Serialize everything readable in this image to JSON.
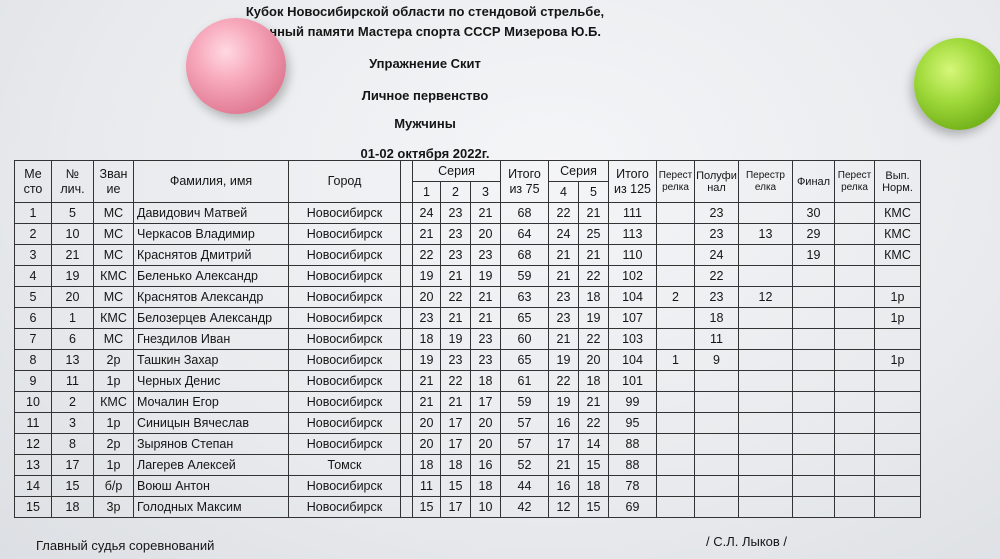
{
  "header": {
    "line1": "Кубок Новосибирской области по стендовой стрельбе,",
    "line2": "…енный памяти Мастера спорта СССР Мизерова Ю.Б.",
    "line3": "Упражнение Скит",
    "line4": "Личное первенство",
    "line5": "Мужчины",
    "line6": "01-02 октября  2022г."
  },
  "columns": {
    "place": [
      "Ме",
      "сто"
    ],
    "num": [
      "№",
      "лич."
    ],
    "rank": [
      "Зван",
      "ие"
    ],
    "name": "Фамилия, имя",
    "city": "Город",
    "series": "Серия",
    "s1": "1",
    "s2": "2",
    "s3": "3",
    "total75": [
      "Итого",
      "из 75"
    ],
    "series2": "Серия",
    "s4": "4",
    "s5": "5",
    "total125": [
      "Итого",
      "из 125"
    ],
    "shootoff1": [
      "Перест",
      "релка"
    ],
    "semifinal": [
      "Полуфи",
      "нал"
    ],
    "shootoff2": [
      "Перестр",
      "елка"
    ],
    "final": "Финал",
    "shootoff3": [
      "Перест",
      "релка"
    ],
    "norm": [
      "Вып.",
      "Норм."
    ]
  },
  "rows": [
    {
      "place": "1",
      "num": "5",
      "rank": "МС",
      "name": "Давидович Матвей",
      "city": "Новосибирск",
      "s1": "24",
      "s2": "23",
      "s3": "21",
      "t75": "68",
      "s4": "22",
      "s5": "21",
      "t125": "111",
      "so1": "",
      "semi": "23",
      "so2": "",
      "final": "30",
      "so3": "",
      "norm": "КМС"
    },
    {
      "place": "2",
      "num": "10",
      "rank": "МС",
      "name": "Черкасов Владимир",
      "city": "Новосибирск",
      "s1": "21",
      "s2": "23",
      "s3": "20",
      "t75": "64",
      "s4": "24",
      "s5": "25",
      "t125": "113",
      "so1": "",
      "semi": "23",
      "so2": "13",
      "final": "29",
      "so3": "",
      "norm": "КМС"
    },
    {
      "place": "3",
      "num": "21",
      "rank": "МС",
      "name": "Краснятов Дмитрий",
      "city": "Новосибирск",
      "s1": "22",
      "s2": "23",
      "s3": "23",
      "t75": "68",
      "s4": "21",
      "s5": "21",
      "t125": "110",
      "so1": "",
      "semi": "24",
      "so2": "",
      "final": "19",
      "so3": "",
      "norm": "КМС"
    },
    {
      "place": "4",
      "num": "19",
      "rank": "КМС",
      "name": "Беленько Александр",
      "city": "Новосибирск",
      "s1": "19",
      "s2": "21",
      "s3": "19",
      "t75": "59",
      "s4": "21",
      "s5": "22",
      "t125": "102",
      "so1": "",
      "semi": "22",
      "so2": "",
      "final": "",
      "so3": "",
      "norm": ""
    },
    {
      "place": "5",
      "num": "20",
      "rank": "МС",
      "name": "Краснятов Александр",
      "city": "Новосибирск",
      "s1": "20",
      "s2": "22",
      "s3": "21",
      "t75": "63",
      "s4": "23",
      "s5": "18",
      "t125": "104",
      "so1": "2",
      "semi": "23",
      "so2": "12",
      "final": "",
      "so3": "",
      "norm": "1р"
    },
    {
      "place": "6",
      "num": "1",
      "rank": "КМС",
      "name": "Белозерцев Александр",
      "city": "Новосибирск",
      "s1": "23",
      "s2": "21",
      "s3": "21",
      "t75": "65",
      "s4": "23",
      "s5": "19",
      "t125": "107",
      "so1": "",
      "semi": "18",
      "so2": "",
      "final": "",
      "so3": "",
      "norm": "1р"
    },
    {
      "place": "7",
      "num": "6",
      "rank": "МС",
      "name": "Гнездилов Иван",
      "city": "Новосибирск",
      "s1": "18",
      "s2": "19",
      "s3": "23",
      "t75": "60",
      "s4": "21",
      "s5": "22",
      "t125": "103",
      "so1": "",
      "semi": "11",
      "so2": "",
      "final": "",
      "so3": "",
      "norm": ""
    },
    {
      "place": "8",
      "num": "13",
      "rank": "2р",
      "name": "Ташкин Захар",
      "city": "Новосибирск",
      "s1": "19",
      "s2": "23",
      "s3": "23",
      "t75": "65",
      "s4": "19",
      "s5": "20",
      "t125": "104",
      "so1": "1",
      "semi": "9",
      "so2": "",
      "final": "",
      "so3": "",
      "norm": "1р"
    },
    {
      "place": "9",
      "num": "11",
      "rank": "1р",
      "name": "Черных Денис",
      "city": "Новосибирск",
      "s1": "21",
      "s2": "22",
      "s3": "18",
      "t75": "61",
      "s4": "22",
      "s5": "18",
      "t125": "101",
      "so1": "",
      "semi": "",
      "so2": "",
      "final": "",
      "so3": "",
      "norm": ""
    },
    {
      "place": "10",
      "num": "2",
      "rank": "КМС",
      "name": "Мочалин Егор",
      "city": "Новосибирск",
      "s1": "21",
      "s2": "21",
      "s3": "17",
      "t75": "59",
      "s4": "19",
      "s5": "21",
      "t125": "99",
      "so1": "",
      "semi": "",
      "so2": "",
      "final": "",
      "so3": "",
      "norm": ""
    },
    {
      "place": "11",
      "num": "3",
      "rank": "1р",
      "name": "Синицын Вячеслав",
      "city": "Новосибирск",
      "s1": "20",
      "s2": "17",
      "s3": "20",
      "t75": "57",
      "s4": "16",
      "s5": "22",
      "t125": "95",
      "so1": "",
      "semi": "",
      "so2": "",
      "final": "",
      "so3": "",
      "norm": ""
    },
    {
      "place": "12",
      "num": "8",
      "rank": "2р",
      "name": "Зырянов Степан",
      "city": "Новосибирск",
      "s1": "20",
      "s2": "17",
      "s3": "20",
      "t75": "57",
      "s4": "17",
      "s5": "14",
      "t125": "88",
      "so1": "",
      "semi": "",
      "so2": "",
      "final": "",
      "so3": "",
      "norm": ""
    },
    {
      "place": "13",
      "num": "17",
      "rank": "1р",
      "name": "Лагерев Алексей",
      "city": "Томск",
      "s1": "18",
      "s2": "18",
      "s3": "16",
      "t75": "52",
      "s4": "21",
      "s5": "15",
      "t125": "88",
      "so1": "",
      "semi": "",
      "so2": "",
      "final": "",
      "so3": "",
      "norm": ""
    },
    {
      "place": "14",
      "num": "15",
      "rank": "б/р",
      "name": "Воюш Антон",
      "city": "Новосибирск",
      "s1": "11",
      "s2": "15",
      "s3": "18",
      "t75": "44",
      "s4": "16",
      "s5": "18",
      "t125": "78",
      "so1": "",
      "semi": "",
      "so2": "",
      "final": "",
      "so3": "",
      "norm": ""
    },
    {
      "place": "15",
      "num": "18",
      "rank": "3р",
      "name": "Голодных Максим",
      "city": "Новосибирск",
      "s1": "15",
      "s2": "17",
      "s3": "10",
      "t75": "42",
      "s4": "12",
      "s5": "15",
      "t125": "69",
      "so1": "",
      "semi": "",
      "so2": "",
      "final": "",
      "so3": "",
      "norm": ""
    }
  ],
  "footer": {
    "judge_label": "Главный судья соревнований",
    "judge_name": "/ С.Л. Лыков /"
  }
}
